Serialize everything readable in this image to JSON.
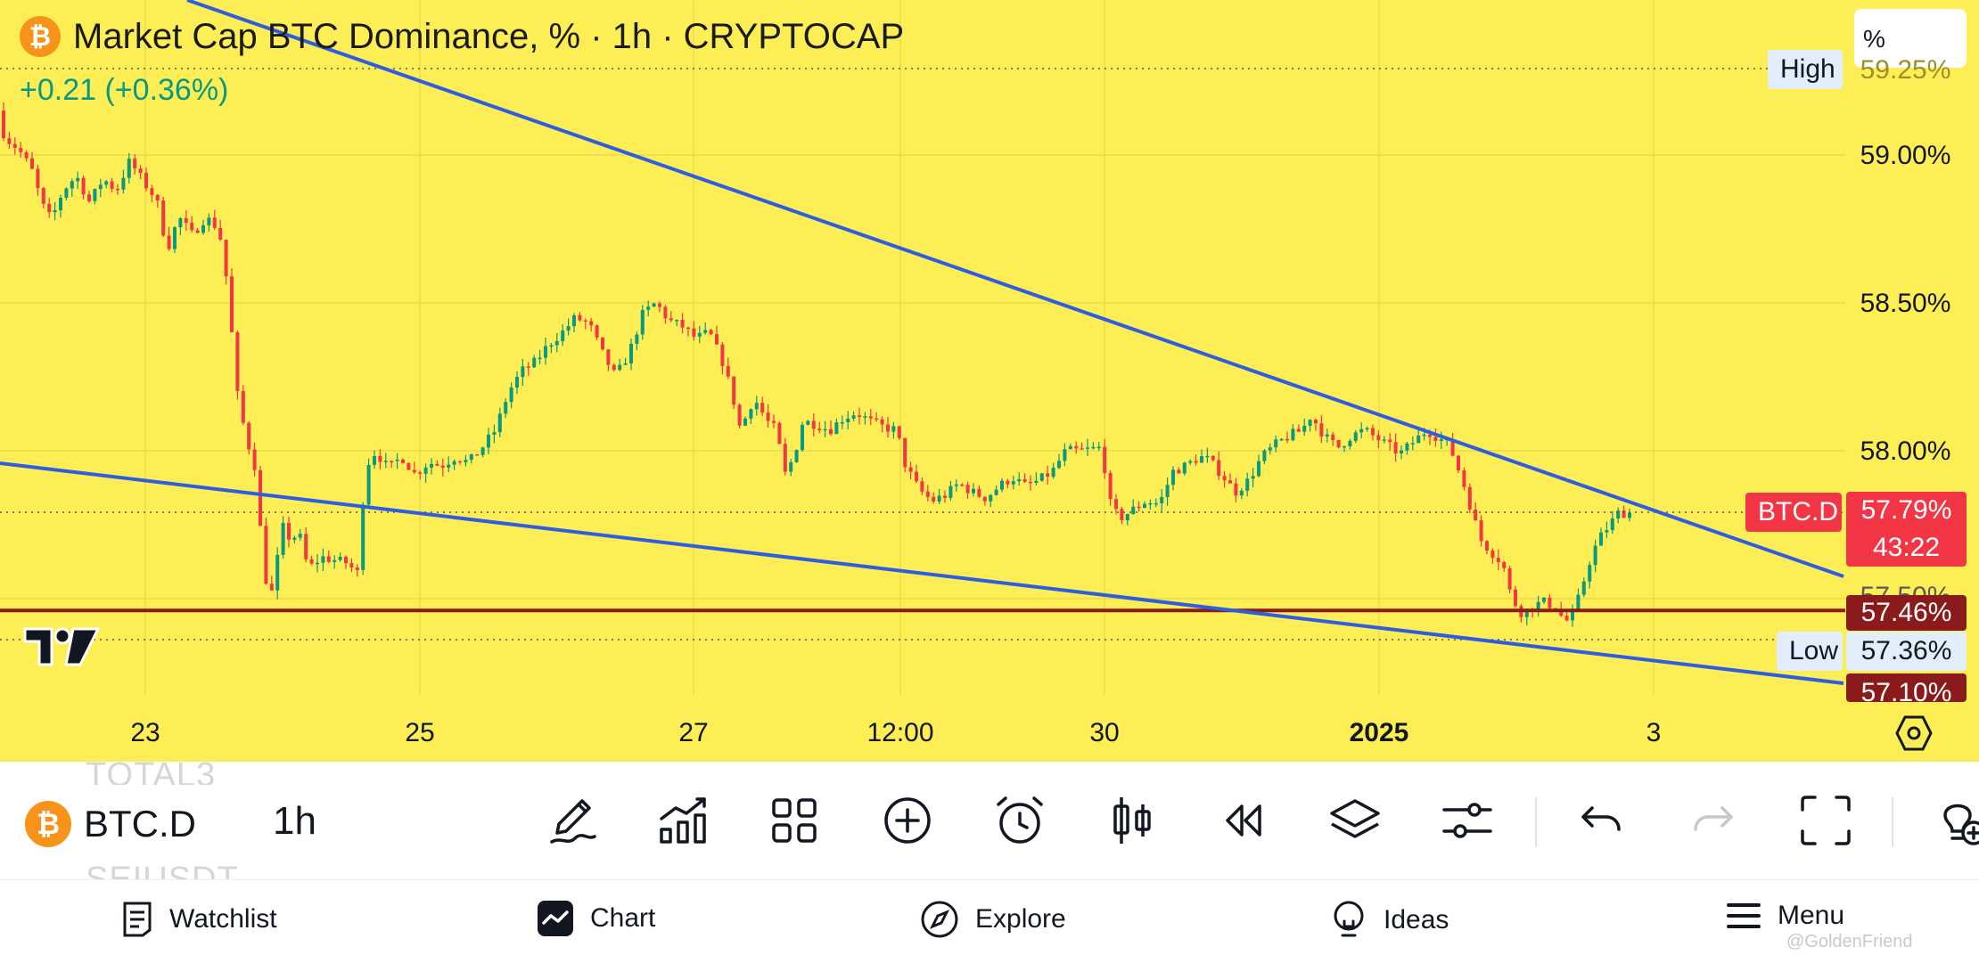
{
  "header": {
    "coin_icon": "bitcoin-logo",
    "title": "Market Cap BTC Dominance, % · 1h · CRYPTOCAP",
    "change": "+0.21 (+0.36%)"
  },
  "unit_selector": {
    "label": "%"
  },
  "tags": {
    "high": "High",
    "low": "Low",
    "symbol": "BTC.D"
  },
  "price_scale": {
    "top_partial": "59.25%",
    "labels": [
      "59.00%",
      "58.50%",
      "58.00%"
    ],
    "current_price": "57.79%",
    "countdown": "43:22",
    "hidden_partial": "57.50%",
    "level_line": "57.46%",
    "low_value": "57.36%",
    "bottom_partial": "57.10%"
  },
  "time_axis": [
    "23",
    "25",
    "27",
    "12:00",
    "30",
    "2025",
    "3"
  ],
  "chart_data": {
    "type": "candlestick",
    "symbol": "BTC.D",
    "interval": "1h",
    "y_range": [
      57.03,
      59.4
    ],
    "current": 57.79,
    "level": 57.46,
    "trendlines": [
      {
        "from": {
          "x": "Dec 21",
          "y": 59.55
        },
        "to": {
          "x": "Jan 3 evening",
          "y": 57.63
        }
      },
      {
        "from": {
          "x": "Dec 21",
          "y": 57.89
        },
        "to": {
          "x": "Jan 3 evening",
          "y": 57.1
        }
      }
    ],
    "path": [
      [
        0,
        59.15
      ],
      [
        10,
        59.06
      ],
      [
        25,
        59.02
      ],
      [
        40,
        58.95
      ],
      [
        52,
        58.83
      ],
      [
        62,
        58.78
      ],
      [
        75,
        58.88
      ],
      [
        90,
        58.93
      ],
      [
        105,
        58.84
      ],
      [
        120,
        58.92
      ],
      [
        135,
        58.88
      ],
      [
        150,
        58.98
      ],
      [
        165,
        58.91
      ],
      [
        180,
        58.85
      ],
      [
        192,
        58.68
      ],
      [
        205,
        58.79
      ],
      [
        220,
        58.73
      ],
      [
        235,
        58.79
      ],
      [
        250,
        58.75
      ],
      [
        260,
        58.55
      ],
      [
        270,
        58.2
      ],
      [
        280,
        58.05
      ],
      [
        290,
        57.95
      ],
      [
        300,
        57.62
      ],
      [
        306,
        57.5
      ],
      [
        312,
        57.54
      ],
      [
        320,
        57.75
      ],
      [
        330,
        57.7
      ],
      [
        340,
        57.72
      ],
      [
        350,
        57.6
      ],
      [
        365,
        57.64
      ],
      [
        380,
        57.63
      ],
      [
        395,
        57.62
      ],
      [
        405,
        57.58
      ],
      [
        412,
        57.85
      ],
      [
        420,
        58.0
      ],
      [
        430,
        57.98
      ],
      [
        440,
        57.94
      ],
      [
        455,
        57.98
      ],
      [
        470,
        57.92
      ],
      [
        485,
        57.96
      ],
      [
        500,
        57.95
      ],
      [
        515,
        57.98
      ],
      [
        530,
        57.96
      ],
      [
        545,
        58.01
      ],
      [
        560,
        58.07
      ],
      [
        575,
        58.2
      ],
      [
        590,
        58.27
      ],
      [
        605,
        58.3
      ],
      [
        620,
        58.36
      ],
      [
        635,
        58.4
      ],
      [
        650,
        58.45
      ],
      [
        665,
        58.43
      ],
      [
        680,
        58.33
      ],
      [
        695,
        58.25
      ],
      [
        710,
        58.33
      ],
      [
        725,
        58.46
      ],
      [
        740,
        58.5
      ],
      [
        755,
        58.44
      ],
      [
        770,
        58.42
      ],
      [
        785,
        58.38
      ],
      [
        800,
        58.4
      ],
      [
        815,
        58.3
      ],
      [
        825,
        58.2
      ],
      [
        835,
        58.07
      ],
      [
        850,
        58.18
      ],
      [
        865,
        58.1
      ],
      [
        875,
        58.07
      ],
      [
        885,
        57.92
      ],
      [
        895,
        57.98
      ],
      [
        905,
        58.1
      ],
      [
        920,
        58.09
      ],
      [
        935,
        58.07
      ],
      [
        950,
        58.11
      ],
      [
        965,
        58.13
      ],
      [
        980,
        58.1
      ],
      [
        995,
        58.08
      ],
      [
        1010,
        58.07
      ],
      [
        1020,
        57.95
      ],
      [
        1035,
        57.87
      ],
      [
        1050,
        57.83
      ],
      [
        1065,
        57.85
      ],
      [
        1080,
        57.89
      ],
      [
        1095,
        57.86
      ],
      [
        1110,
        57.84
      ],
      [
        1125,
        57.88
      ],
      [
        1140,
        57.91
      ],
      [
        1155,
        57.88
      ],
      [
        1170,
        57.9
      ],
      [
        1185,
        57.93
      ],
      [
        1200,
        58.0
      ],
      [
        1215,
        58.0
      ],
      [
        1240,
        58.01
      ],
      [
        1250,
        57.82
      ],
      [
        1260,
        57.77
      ],
      [
        1275,
        57.8
      ],
      [
        1290,
        57.83
      ],
      [
        1305,
        57.82
      ],
      [
        1320,
        57.93
      ],
      [
        1335,
        57.95
      ],
      [
        1350,
        57.98
      ],
      [
        1360,
        57.97
      ],
      [
        1375,
        57.92
      ],
      [
        1390,
        57.86
      ],
      [
        1405,
        57.9
      ],
      [
        1420,
        57.98
      ],
      [
        1435,
        58.02
      ],
      [
        1450,
        58.05
      ],
      [
        1465,
        58.07
      ],
      [
        1475,
        58.12
      ],
      [
        1490,
        58.05
      ],
      [
        1505,
        58.01
      ],
      [
        1520,
        58.05
      ],
      [
        1535,
        58.07
      ],
      [
        1545,
        58.05
      ],
      [
        1560,
        58.02
      ],
      [
        1575,
        57.99
      ],
      [
        1590,
        58.03
      ],
      [
        1605,
        58.07
      ],
      [
        1615,
        58.05
      ],
      [
        1630,
        58.02
      ],
      [
        1645,
        57.9
      ],
      [
        1655,
        57.8
      ],
      [
        1665,
        57.7
      ],
      [
        1680,
        57.65
      ],
      [
        1690,
        57.62
      ],
      [
        1700,
        57.5
      ],
      [
        1712,
        57.45
      ],
      [
        1722,
        57.47
      ],
      [
        1735,
        57.49
      ],
      [
        1750,
        57.47
      ],
      [
        1760,
        57.42
      ],
      [
        1770,
        57.45
      ],
      [
        1780,
        57.55
      ],
      [
        1790,
        57.65
      ],
      [
        1800,
        57.71
      ],
      [
        1810,
        57.75
      ],
      [
        1820,
        57.79
      ],
      [
        1830,
        57.79
      ]
    ]
  },
  "toolbar": {
    "ghost_top": "TOTAL3",
    "ghost_bottom": "SEIUSDT",
    "symbol": "BTC.D",
    "symbol_icon": "bitcoin-logo",
    "interval": "1h",
    "tools": [
      "pencil-icon",
      "indicators-icon",
      "grid-icon",
      "plus-circle-icon",
      "alarm-icon",
      "candles-icon",
      "replay-icon",
      "layers-icon",
      "settings-sliders-icon",
      "undo-icon",
      "redo-icon",
      "fullscreen-icon",
      "bulb-plus-icon"
    ]
  },
  "bottom_nav": {
    "watchlist": "Watchlist",
    "chart": "Chart",
    "explore": "Explore",
    "ideas": "Ideas",
    "menu": "Menu"
  },
  "watermark": "@GoldenFriend",
  "colors": {
    "chart_bg": "#fdee55",
    "up": "#089981",
    "down": "#f23645",
    "trendline": "#2962ff",
    "level": "#8b1a1a"
  }
}
